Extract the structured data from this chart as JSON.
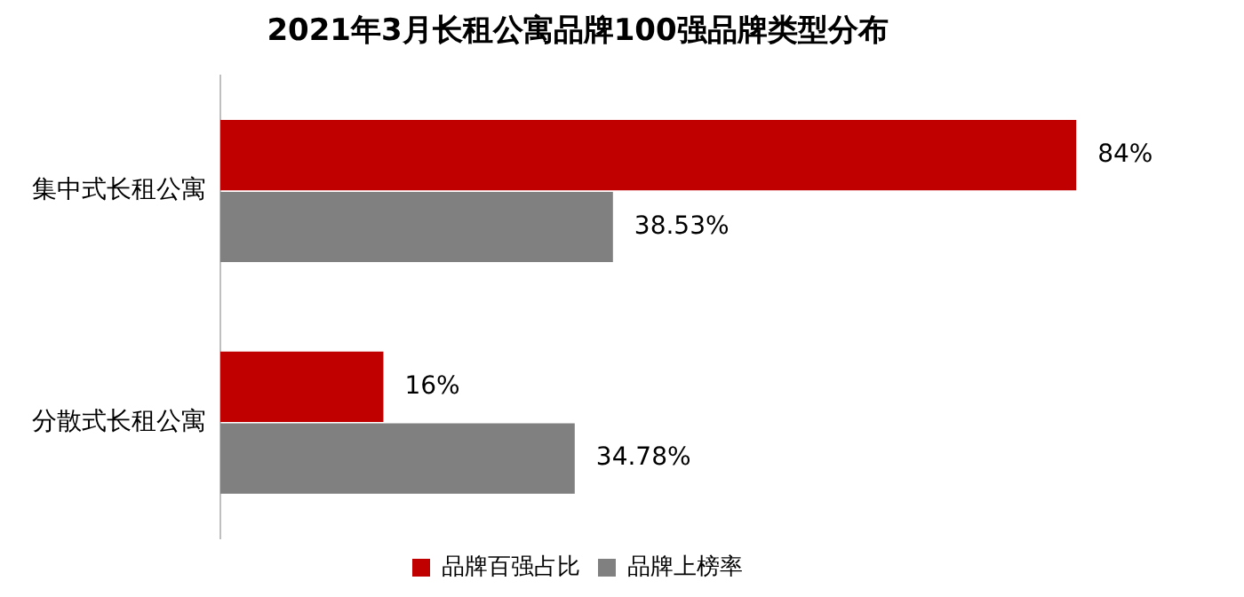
{
  "chart_data": {
    "type": "bar",
    "orientation": "horizontal",
    "title": "2021年3月长租公寓品牌100强品牌类型分布",
    "categories": [
      "集中式长租公寓",
      "分散式长租公寓"
    ],
    "series": [
      {
        "name": "品牌百强占比",
        "color": "#c00000",
        "values": [
          84,
          16
        ],
        "value_labels": [
          "84%",
          "16%"
        ]
      },
      {
        "name": "品牌上榜率",
        "color": "#808080",
        "values": [
          38.53,
          34.78
        ],
        "value_labels": [
          "38.53%",
          "34.78%"
        ]
      }
    ],
    "grid": false,
    "legend": "bottom",
    "tick_labels": "y"
  }
}
